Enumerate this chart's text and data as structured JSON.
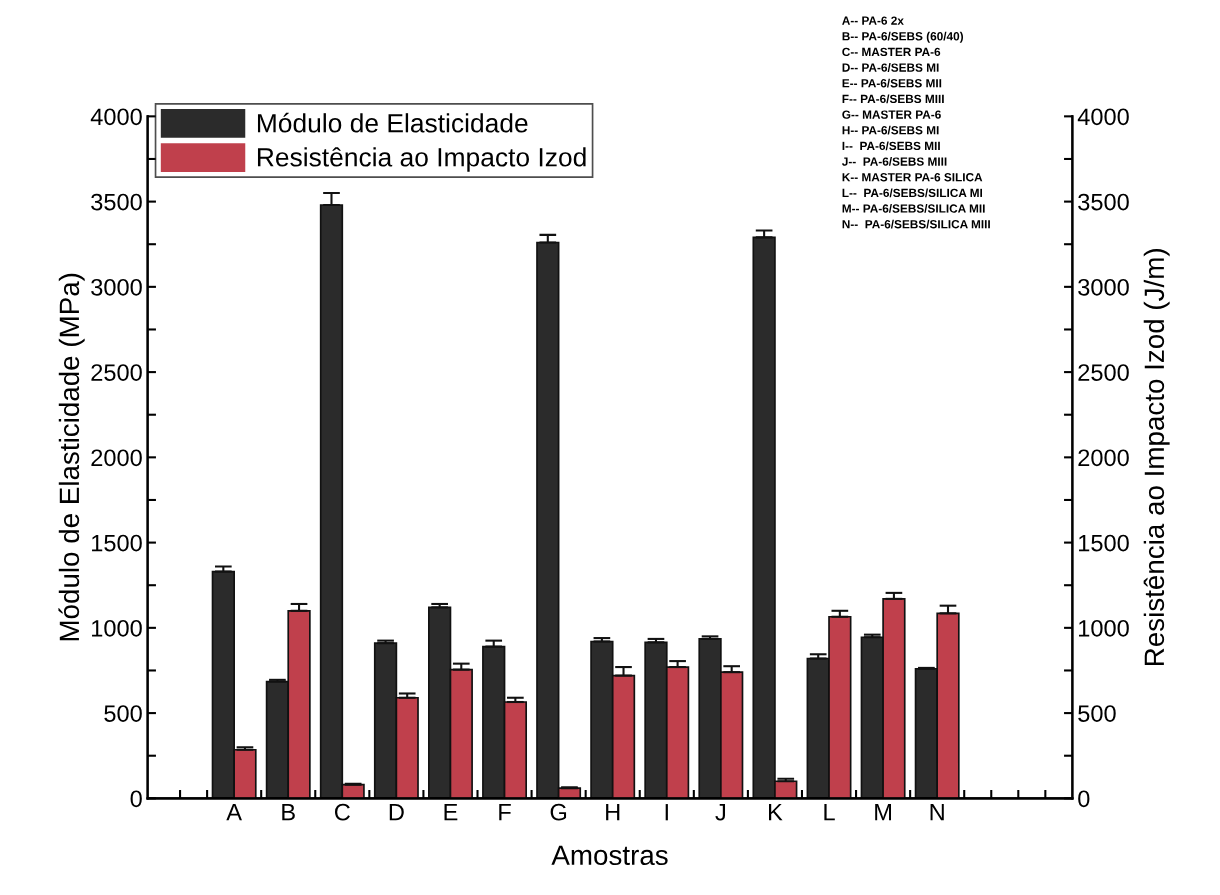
{
  "chart_data": {
    "type": "bar",
    "xlabel": "Amostras",
    "ylabel": "Módulo de Elasticidade (MPa)",
    "y2label": "Resistência ao Impacto Izod (J/m)",
    "categories": [
      null,
      "A",
      "B",
      "C",
      "D",
      "E",
      "F",
      "G",
      "H",
      "I",
      "J",
      "K",
      "L",
      "M",
      "N",
      null,
      null
    ],
    "series": [
      {
        "name": "Módulo de Elasticidade",
        "color": "#2b2b2b",
        "values": [
          null,
          1330,
          685,
          3480,
          910,
          1120,
          890,
          3260,
          920,
          915,
          935,
          3290,
          820,
          945,
          760,
          null,
          null
        ],
        "errors": [
          null,
          30,
          10,
          70,
          15,
          20,
          35,
          45,
          20,
          20,
          15,
          40,
          25,
          15,
          5,
          null,
          null
        ]
      },
      {
        "name": "Resistência ao Impacto Izod",
        "color": "#c0404c",
        "axis": "y2",
        "values": [
          null,
          285,
          1100,
          80,
          590,
          755,
          565,
          60,
          720,
          770,
          740,
          100,
          1065,
          1170,
          1085,
          null,
          null
        ],
        "errors": [
          null,
          15,
          40,
          5,
          25,
          35,
          25,
          5,
          50,
          35,
          35,
          15,
          35,
          35,
          45,
          null,
          null
        ]
      }
    ],
    "ylim": [
      0,
      4000
    ],
    "yticks": [
      0,
      {
        "value": 250,
        "label": null
      },
      500,
      {
        "value": 750,
        "label": null
      },
      1000,
      {
        "value": 1250,
        "label": null
      },
      1500,
      {
        "value": 1750,
        "label": null
      },
      2000,
      {
        "value": 2250,
        "label": null
      },
      2500,
      {
        "value": 2750,
        "label": null
      },
      3000,
      {
        "value": 3250,
        "label": null
      },
      3500,
      {
        "value": 3750,
        "label": null
      },
      4000
    ],
    "y2lim": [
      0,
      4000
    ],
    "y2ticks": [
      0,
      {
        "value": 250,
        "label": null
      },
      500,
      {
        "value": 750,
        "label": null
      },
      1000,
      {
        "value": 1250,
        "label": null
      },
      1500,
      {
        "value": 1750,
        "label": null
      },
      2000,
      {
        "value": 2250,
        "label": null
      },
      2500,
      {
        "value": 2750,
        "label": null
      },
      3000,
      {
        "value": 3250,
        "label": null
      },
      3500,
      {
        "value": 3750,
        "label": null
      },
      4000
    ],
    "legend": "top left",
    "grid": false,
    "annotations": [
      "A-- PA-6 2x",
      "B-- PA-6/SEBS (60/40)",
      "C-- MASTER PA-6",
      "D-- PA-6/SEBS MI",
      "E-- PA-6/SEBS MII",
      "F-- PA-6/SEBS MIII",
      "G-- MASTER PA-6",
      "H-- PA-6/SEBS MI",
      "I--  PA-6/SEBS MII",
      "J--  PA-6/SEBS MIII",
      "K-- MASTER PA-6 SILICA",
      "L--  PA-6/SEBS/SILICA MI",
      "M-- PA-6/SEBS/SILICA MII",
      "N--  PA-6/SEBS/SILICA MIII"
    ]
  }
}
